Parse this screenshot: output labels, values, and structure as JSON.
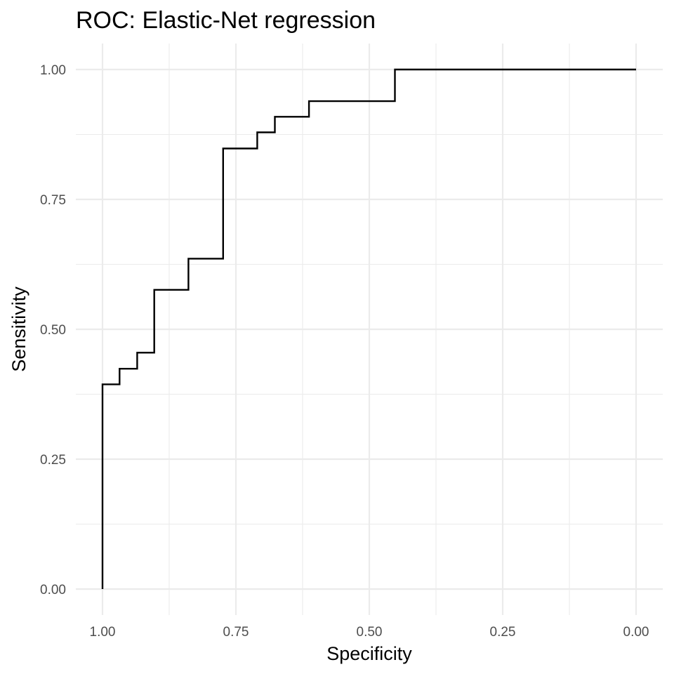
{
  "chart_data": {
    "type": "line",
    "title": "ROC: Elastic-Net regression",
    "xlabel": "Specificity",
    "ylabel": "Sensitivity",
    "x_reversed": true,
    "xlim": [
      1.0,
      0.0
    ],
    "ylim": [
      0.0,
      1.0
    ],
    "x_ticks": [
      "1.00",
      "0.75",
      "0.50",
      "0.25",
      "0.00"
    ],
    "y_ticks": [
      "0.00",
      "0.25",
      "0.50",
      "0.75",
      "1.00"
    ],
    "grid": true,
    "legend": "none",
    "line_color": "#000000",
    "series": [
      {
        "step": true,
        "points": [
          {
            "x": 1.0,
            "y": 0.0
          },
          {
            "x": 1.0,
            "y": 0.394
          },
          {
            "x": 0.968,
            "y": 0.394
          },
          {
            "x": 0.968,
            "y": 0.424
          },
          {
            "x": 0.935,
            "y": 0.424
          },
          {
            "x": 0.935,
            "y": 0.455
          },
          {
            "x": 0.903,
            "y": 0.455
          },
          {
            "x": 0.903,
            "y": 0.576
          },
          {
            "x": 0.839,
            "y": 0.576
          },
          {
            "x": 0.839,
            "y": 0.636
          },
          {
            "x": 0.774,
            "y": 0.636
          },
          {
            "x": 0.774,
            "y": 0.848
          },
          {
            "x": 0.71,
            "y": 0.848
          },
          {
            "x": 0.71,
            "y": 0.879
          },
          {
            "x": 0.677,
            "y": 0.879
          },
          {
            "x": 0.677,
            "y": 0.909
          },
          {
            "x": 0.613,
            "y": 0.909
          },
          {
            "x": 0.613,
            "y": 0.939
          },
          {
            "x": 0.452,
            "y": 0.939
          },
          {
            "x": 0.452,
            "y": 1.0
          },
          {
            "x": 0.0,
            "y": 1.0
          }
        ]
      }
    ]
  }
}
